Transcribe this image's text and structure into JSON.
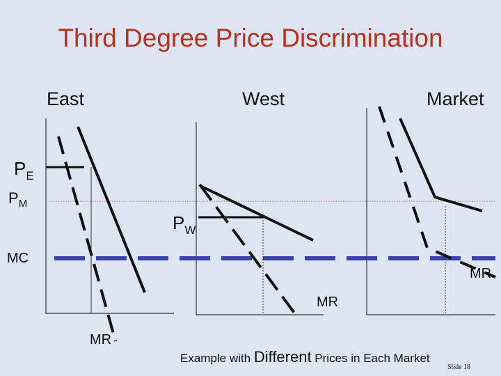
{
  "title": "Third Degree Price Discrimination",
  "panels": {
    "east": "East",
    "west": "West",
    "market": "Market"
  },
  "labels": {
    "pe_main": "P",
    "pe_sub": "E",
    "pm_main": "P",
    "pm_sub": "M",
    "pw_main": "P",
    "pw_sub": "W",
    "mc": "MC",
    "mr_east": "MR",
    "mr_west": "MR",
    "mr_market": "MR"
  },
  "footnote": {
    "pre": "Example with ",
    "emph": "Different",
    "post": " Prices in Each Market"
  },
  "slide_number": "Slide 18",
  "colors": {
    "background": "#dde4f2",
    "title": "#b8301e",
    "mc_line": "#3a3fb0",
    "axes": "#333333",
    "curves": "#111111",
    "pm_line": "#c05060"
  }
}
